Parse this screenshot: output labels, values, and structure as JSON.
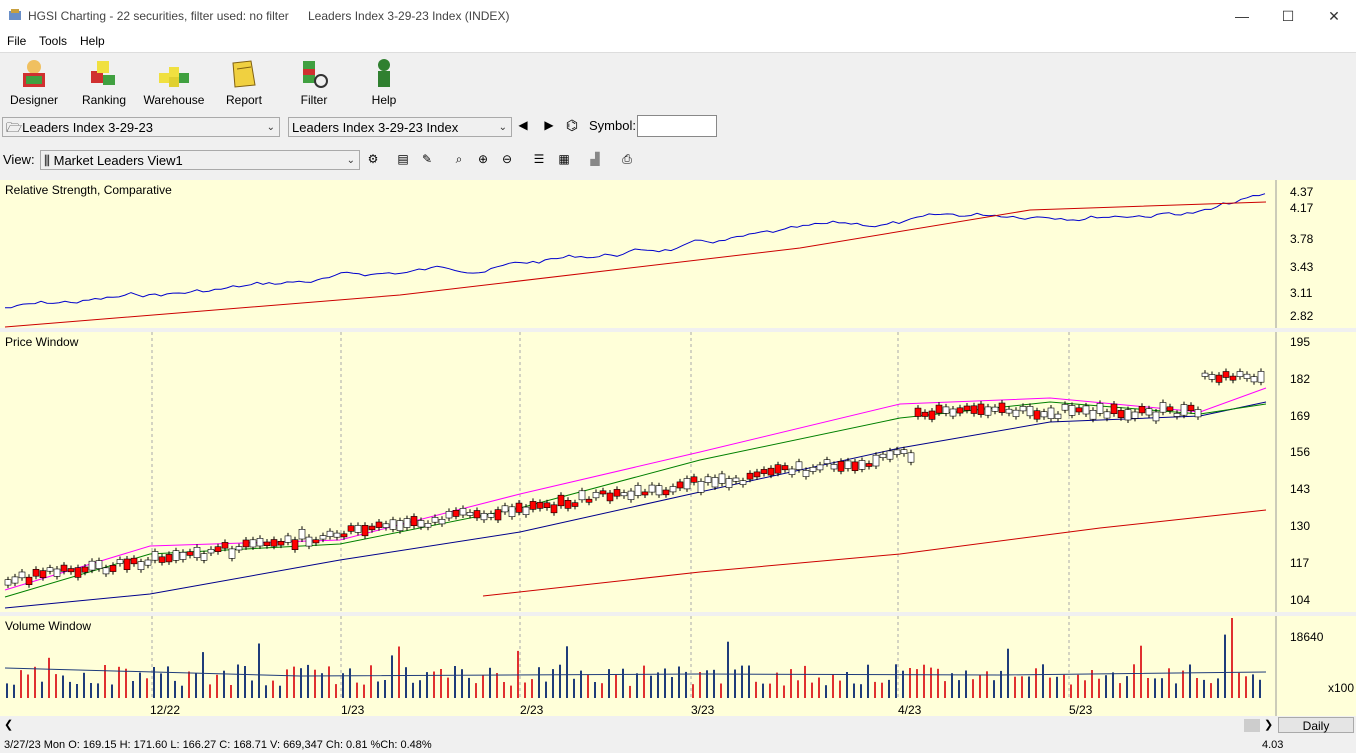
{
  "window": {
    "title": "HGSI Charting - 22 securities, filter used: no filter",
    "doc_title": "Leaders Index 3-29-23 Index (INDEX)",
    "controls": [
      "—",
      "☐",
      "✕"
    ]
  },
  "menu": [
    "File",
    "Tools",
    "Help"
  ],
  "toolbar": [
    {
      "label": "Designer",
      "icon": "designer-icon"
    },
    {
      "label": "Ranking",
      "icon": "ranking-icon"
    },
    {
      "label": "Warehouse",
      "icon": "warehouse-icon"
    },
    {
      "label": "Report",
      "icon": "report-icon"
    },
    {
      "label": "Filter",
      "icon": "filter-icon"
    },
    {
      "label": "Help",
      "icon": "help-icon"
    }
  ],
  "nav": {
    "list_value": "Leaders Index 3-29-23",
    "security_value": "Leaders Index 3-29-23 Index",
    "symbol_label": "Symbol:",
    "symbol_value": ""
  },
  "view": {
    "label": "View:",
    "value": "Market Leaders View1"
  },
  "panels": {
    "rs": {
      "title": "Relative Strength, Comparative",
      "ticks": [
        "4.37",
        "4.17",
        "3.78",
        "3.43",
        "3.11",
        "2.82"
      ]
    },
    "price": {
      "title": "Price Window",
      "ticks": [
        "195",
        "182",
        "169",
        "156",
        "143",
        "130",
        "117",
        "104"
      ]
    },
    "volume": {
      "title": "Volume Window",
      "tick": "18640",
      "multiplier": "x100"
    }
  },
  "x_axis": [
    "12/22",
    "1/23",
    "2/23",
    "3/23",
    "4/23",
    "5/23"
  ],
  "period": "Daily",
  "status_text": "3/27/23 Mon O: 169.15 H: 171.60 L: 166.27 C: 168.71 V: 669,347 Ch: 0.81 %Ch: 0.48%",
  "status_value": "4.03",
  "colors": {
    "chart_bg": "#ffffd9",
    "up_candle": "#ffffff",
    "down_candle": "#ff0000",
    "ma_fast": "#ff00ff",
    "ma_mid": "#008000",
    "ma_slow": "#00008b",
    "ma_long": "#cc0000",
    "rs_line": "#0000cc",
    "rs_ma": "#cc0000"
  }
}
